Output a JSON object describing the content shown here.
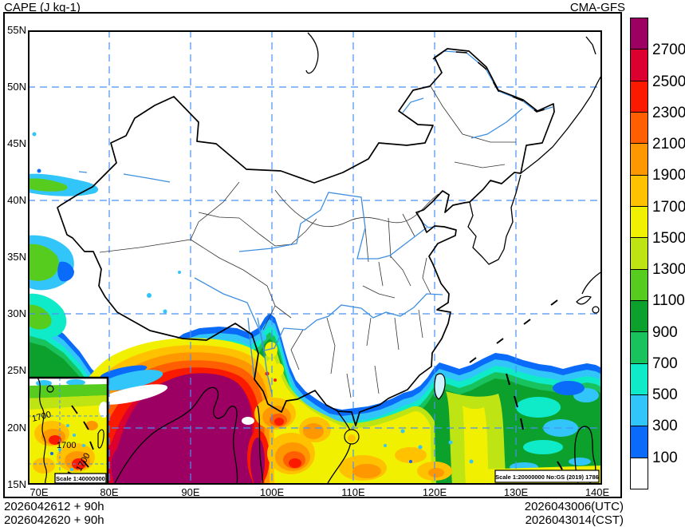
{
  "header": {
    "title": "CAPE (J kg-1)",
    "model": "CMA-GFS"
  },
  "axes": {
    "lat": [
      "55N",
      "50N",
      "45N",
      "40N",
      "35N",
      "30N",
      "25N",
      "20N",
      "15N"
    ],
    "lon": [
      "70E",
      "80E",
      "90E",
      "100E",
      "110E",
      "120E",
      "130E",
      "140E"
    ]
  },
  "colorbar": {
    "labels": [
      "2700",
      "2500",
      "2300",
      "2100",
      "1900",
      "1700",
      "1500",
      "1300",
      "1100",
      "900",
      "700",
      "500",
      "300",
      "100"
    ],
    "colors_top_to_bottom": [
      "#9C0063",
      "#DC0030",
      "#FA1A00",
      "#FF5F00",
      "#FF9800",
      "#FFC100",
      "#F0F000",
      "#BEE414",
      "#56CD1E",
      "#0CA02C",
      "#18C35D",
      "#0FEAC8",
      "#32C5FA",
      "#0A6BFA",
      "#FFFFFF"
    ]
  },
  "map": {
    "scale_badge": "Scale 1:20000000 No:GS (2019) 1786",
    "inset_scale_badge": "Scale 1:40000000",
    "contour_labels": [
      "1700",
      "1700",
      "1700"
    ]
  },
  "footer": {
    "run_line1": "2026042612 + 90h",
    "run_line2": "2026042620 + 90h",
    "valid_utc": "2026043006(UTC)",
    "valid_cst": "2026043014(CST)"
  }
}
